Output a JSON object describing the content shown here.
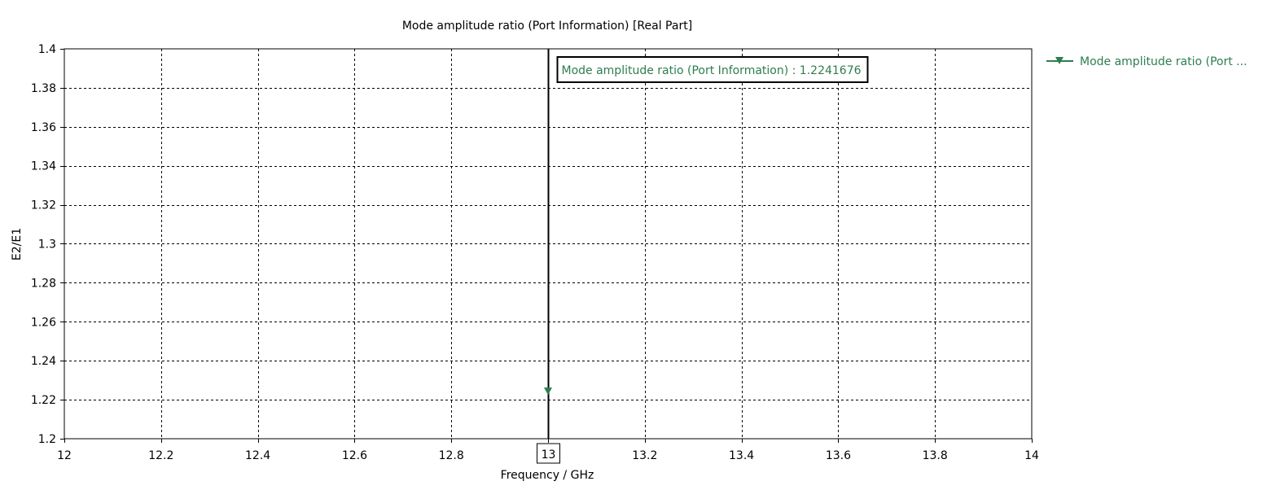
{
  "chart_data": {
    "type": "scatter",
    "title": "Mode amplitude ratio (Port Information) [Real Part]",
    "xlabel": "Frequency / GHz",
    "ylabel": "E2/E1",
    "xlim": [
      12,
      14
    ],
    "ylim": [
      1.2,
      1.4
    ],
    "x_ticks": [
      12,
      12.2,
      12.4,
      12.6,
      12.8,
      13,
      13.2,
      13.4,
      13.6,
      13.8,
      14
    ],
    "x_tick_labels": [
      "12",
      "12.2",
      "12.4",
      "12.6",
      "12.8",
      "13",
      "13.2",
      "13.4",
      "13.6",
      "13.8",
      "14"
    ],
    "y_ticks": [
      1.2,
      1.22,
      1.24,
      1.26,
      1.28,
      1.3,
      1.32,
      1.34,
      1.36,
      1.38,
      1.4
    ],
    "y_tick_labels": [
      "1.2",
      "1.22",
      "1.24",
      "1.26",
      "1.28",
      "1.3",
      "1.32",
      "1.34",
      "1.36",
      "1.38",
      "1.4"
    ],
    "grid": true,
    "grid_style": "dashed",
    "legend_position": "right",
    "series": [
      {
        "name": "Mode amplitude ratio (Port ...",
        "color": "#2e7d4f",
        "marker": "triangle-down",
        "x": [
          13
        ],
        "y": [
          1.2241676
        ]
      }
    ],
    "marker_line": {
      "x": 13,
      "x_label": "13",
      "readout": "Mode amplitude ratio (Port Information) : 1.2241676",
      "readout_color": "#2e7d4f"
    }
  }
}
